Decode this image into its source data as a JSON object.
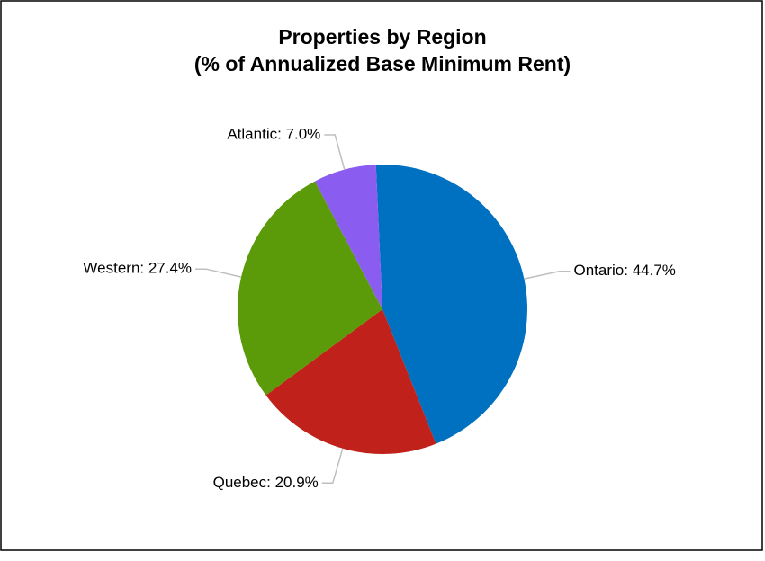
{
  "chart_data": {
    "type": "pie",
    "title": "Properties by Region",
    "subtitle": "(% of Annualized Base Minimum Rent)",
    "values": [
      44.7,
      20.9,
      27.4,
      7.0
    ],
    "value_labels": [
      "Ontario: 44.7%",
      "Quebec: 20.9%",
      "Western: 27.4%",
      "Atlantic: 7.0%"
    ],
    "colors": [
      "#0070c0",
      "#c0211a",
      "#5b9a09",
      "#8b5cf0"
    ]
  }
}
